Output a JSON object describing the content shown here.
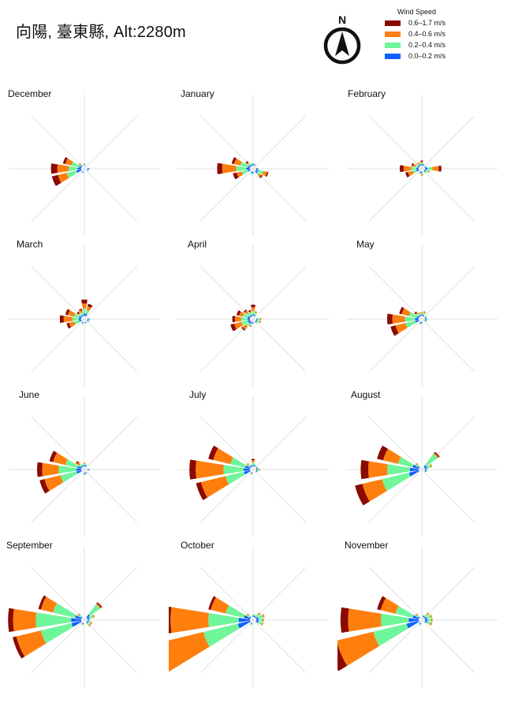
{
  "title": "向陽, 臺東縣, Alt:2280m",
  "compass": {
    "letter": "N"
  },
  "legend": {
    "title": "Wind Speed",
    "items": [
      {
        "label": "0.6–1.7 m/s",
        "color": "#8b0a00"
      },
      {
        "label": "0.4–0.6 m/s",
        "color": "#ff7f0e"
      },
      {
        "label": "0.2–0.4 m/s",
        "color": "#6ff59a"
      },
      {
        "label": "0.0–0.2 m/s",
        "color": "#1060ff"
      }
    ]
  },
  "chart_data": {
    "type": "windrose",
    "directions": [
      "N",
      "NNE",
      "NE",
      "ENE",
      "E",
      "ESE",
      "SE",
      "SSE",
      "S",
      "SSW",
      "SW",
      "WSW",
      "W",
      "WNW",
      "NW",
      "NNW"
    ],
    "bins": [
      "0.0–0.2 m/s",
      "0.2–0.4 m/s",
      "0.4–0.6 m/s",
      "0.6–1.7 m/s"
    ],
    "colors": [
      "#1060ff",
      "#6ff59a",
      "#ff7f0e",
      "#8b0a00"
    ],
    "grid": true,
    "panels": [
      {
        "month": "December",
        "data": {
          "N": [
            1,
            1,
            0,
            0
          ],
          "E": [
            1,
            1,
            0,
            0
          ],
          "ESE": [
            1,
            0,
            0,
            0
          ],
          "SSW": [
            1,
            0,
            0,
            0
          ],
          "WSW": [
            4,
            8,
            7,
            5
          ],
          "W": [
            3,
            7,
            9,
            5
          ],
          "WNW": [
            2,
            6,
            5,
            2
          ],
          "NW": [
            1,
            1,
            1,
            0
          ]
        }
      },
      {
        "month": "January",
        "data": {
          "N": [
            1,
            1,
            0,
            0
          ],
          "NNE": [
            1,
            0,
            0,
            0
          ],
          "E": [
            1,
            1,
            0,
            0
          ],
          "ESE": [
            2,
            4,
            3,
            1
          ],
          "SE": [
            2,
            2,
            2,
            1
          ],
          "S": [
            1,
            1,
            0,
            0
          ],
          "SSW": [
            1,
            1,
            0,
            0
          ],
          "WSW": [
            2,
            5,
            4,
            3
          ],
          "W": [
            3,
            8,
            11,
            4
          ],
          "WNW": [
            2,
            6,
            5,
            2
          ],
          "NW": [
            1,
            2,
            1,
            1
          ],
          "NNW": [
            1,
            1,
            0,
            0
          ]
        }
      },
      {
        "month": "February",
        "data": {
          "N": [
            1,
            1,
            1,
            1
          ],
          "NNE": [
            1,
            1,
            0,
            0
          ],
          "ENE": [
            1,
            1,
            0,
            0
          ],
          "E": [
            2,
            4,
            5,
            2
          ],
          "ESE": [
            1,
            2,
            1,
            0
          ],
          "SE": [
            1,
            1,
            0,
            0
          ],
          "S": [
            1,
            1,
            1,
            0
          ],
          "SSW": [
            1,
            1,
            0,
            0
          ],
          "WSW": [
            2,
            3,
            4,
            2
          ],
          "W": [
            2,
            4,
            6,
            3
          ],
          "WNW": [
            1,
            2,
            2,
            1
          ],
          "NW": [
            1,
            1,
            1,
            0
          ],
          "NNW": [
            1,
            1,
            1,
            0
          ]
        }
      },
      {
        "month": "March",
        "data": {
          "N": [
            2,
            4,
            4,
            3
          ],
          "NNE": [
            2,
            3,
            3,
            2
          ],
          "E": [
            1,
            1,
            0,
            0
          ],
          "ESE": [
            1,
            1,
            0,
            0
          ],
          "SSE": [
            1,
            0,
            0,
            0
          ],
          "SSW": [
            1,
            1,
            0,
            0
          ],
          "WSW": [
            2,
            4,
            4,
            2
          ],
          "W": [
            2,
            5,
            7,
            3
          ],
          "WNW": [
            2,
            4,
            5,
            2
          ],
          "NW": [
            1,
            2,
            1,
            1
          ],
          "NNW": [
            1,
            2,
            2,
            1
          ]
        }
      },
      {
        "month": "April",
        "data": {
          "N": [
            1,
            3,
            3,
            2
          ],
          "NNE": [
            1,
            2,
            1,
            0
          ],
          "E": [
            1,
            2,
            1,
            0
          ],
          "ESE": [
            1,
            2,
            1,
            0
          ],
          "SE": [
            1,
            1,
            0,
            0
          ],
          "S": [
            1,
            0,
            0,
            0
          ],
          "SSW": [
            1,
            2,
            1,
            0
          ],
          "SW": [
            2,
            3,
            3,
            1
          ],
          "WSW": [
            2,
            5,
            6,
            3
          ],
          "W": [
            2,
            5,
            5,
            2
          ],
          "WNW": [
            2,
            4,
            3,
            2
          ],
          "NW": [
            1,
            3,
            2,
            1
          ],
          "NNW": [
            1,
            2,
            1,
            1
          ]
        }
      },
      {
        "month": "May",
        "data": {
          "N": [
            1,
            1,
            1,
            0
          ],
          "NNE": [
            1,
            2,
            1,
            0
          ],
          "ENE": [
            1,
            1,
            0,
            0
          ],
          "E": [
            1,
            1,
            0,
            0
          ],
          "ESE": [
            1,
            1,
            0,
            0
          ],
          "S": [
            1,
            0,
            0,
            0
          ],
          "SSW": [
            1,
            1,
            0,
            0
          ],
          "WSW": [
            3,
            8,
            8,
            4
          ],
          "W": [
            3,
            8,
            10,
            4
          ],
          "WNW": [
            2,
            6,
            6,
            2
          ],
          "NW": [
            1,
            2,
            1,
            1
          ],
          "NNW": [
            1,
            1,
            1,
            0
          ]
        }
      },
      {
        "month": "June",
        "data": {
          "N": [
            1,
            1,
            1,
            0
          ],
          "NNE": [
            1,
            1,
            0,
            0
          ],
          "E": [
            1,
            1,
            0,
            0
          ],
          "SSE": [
            1,
            0,
            0,
            0
          ],
          "S": [
            1,
            1,
            0,
            0
          ],
          "WSW": [
            4,
            13,
            13,
            4
          ],
          "W": [
            4,
            14,
            13,
            4
          ],
          "WNW": [
            3,
            10,
            10,
            3
          ],
          "NW": [
            1,
            2,
            2,
            1
          ],
          "NNW": [
            1,
            1,
            0,
            0
          ]
        }
      },
      {
        "month": "July",
        "data": {
          "N": [
            1,
            2,
            2,
            1
          ],
          "NNE": [
            1,
            1,
            0,
            0
          ],
          "ENE": [
            1,
            1,
            0,
            0
          ],
          "E": [
            1,
            1,
            1,
            0
          ],
          "ESE": [
            1,
            1,
            0,
            0
          ],
          "SSW": [
            1,
            1,
            0,
            0
          ],
          "WSW": [
            5,
            15,
            20,
            4
          ],
          "W": [
            5,
            16,
            22,
            5
          ],
          "WNW": [
            4,
            12,
            14,
            4
          ],
          "NW": [
            1,
            2,
            1,
            0
          ],
          "NNW": [
            1,
            1,
            0,
            0
          ]
        }
      },
      {
        "month": "August",
        "data": {
          "NE": [
            2,
            11,
            1,
            1
          ],
          "ENE": [
            2,
            3,
            1,
            0
          ],
          "E": [
            1,
            1,
            0,
            0
          ],
          "ESE": [
            1,
            1,
            0,
            0
          ],
          "WSW": [
            8,
            22,
            16,
            6
          ],
          "W": [
            7,
            18,
            15,
            6
          ],
          "WNW": [
            5,
            12,
            12,
            5
          ],
          "NW": [
            1,
            2,
            1,
            0
          ]
        }
      },
      {
        "month": "September",
        "data": {
          "NE": [
            3,
            10,
            1,
            1
          ],
          "ENE": [
            2,
            3,
            1,
            0
          ],
          "E": [
            1,
            1,
            0,
            0
          ],
          "ESE": [
            1,
            2,
            1,
            0
          ],
          "SE": [
            1,
            2,
            1,
            0
          ],
          "SSW": [
            1,
            1,
            0,
            0
          ],
          "WSW": [
            8,
            25,
            20,
            3
          ],
          "W": [
            8,
            28,
            18,
            4
          ],
          "WNW": [
            5,
            18,
            10,
            2
          ],
          "NW": [
            1,
            2,
            1,
            0
          ]
        }
      },
      {
        "month": "October",
        "data": {
          "N": [
            1,
            1,
            0,
            0
          ],
          "NNE": [
            1,
            1,
            0,
            0
          ],
          "NE": [
            1,
            3,
            1,
            0
          ],
          "ENE": [
            2,
            4,
            1,
            0
          ],
          "E": [
            2,
            3,
            1,
            0
          ],
          "ESE": [
            2,
            3,
            1,
            0
          ],
          "SSW": [
            1,
            1,
            0,
            0
          ],
          "WSW": [
            10,
            28,
            38,
            3
          ],
          "W": [
            9,
            24,
            30,
            3
          ],
          "WNW": [
            5,
            15,
            12,
            2
          ],
          "NW": [
            1,
            2,
            1,
            0
          ]
        }
      },
      {
        "month": "November",
        "data": {
          "NNE": [
            1,
            1,
            0,
            0
          ],
          "NE": [
            1,
            3,
            1,
            0
          ],
          "ENE": [
            2,
            3,
            1,
            0
          ],
          "E": [
            2,
            3,
            1,
            0
          ],
          "ESE": [
            2,
            3,
            1,
            0
          ],
          "SSW": [
            1,
            1,
            0,
            0
          ],
          "WSW": [
            10,
            27,
            30,
            8
          ],
          "W": [
            8,
            22,
            26,
            6
          ],
          "WNW": [
            5,
            14,
            12,
            3
          ],
          "NW": [
            1,
            2,
            1,
            0
          ]
        }
      }
    ]
  }
}
